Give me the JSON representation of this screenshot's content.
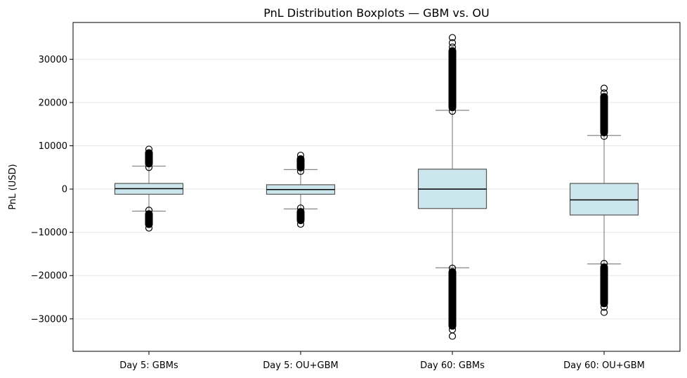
{
  "chart_data": {
    "type": "boxplot",
    "title": "PnL Distribution Boxplots — GBM vs. OU",
    "xlabel": "",
    "ylabel": "PnL (USD)",
    "ylim": [
      -37500,
      38500
    ],
    "yticks": [
      -30000,
      -20000,
      -10000,
      0,
      10000,
      20000,
      30000
    ],
    "ytick_labels": [
      "−30000",
      "−20000",
      "−10000",
      "0",
      "10000",
      "20000",
      "30000"
    ],
    "grid": "horizontal",
    "categories": [
      "Day 5: GBMs",
      "Day 5: OU+GBM",
      "Day 60: GBMs",
      "Day 60: OU+GBM"
    ],
    "boxes": [
      {
        "whisker_low": -5100,
        "q1": -1200,
        "median": 100,
        "q3": 1300,
        "whisker_high": 5300,
        "outliers_high": [
          5000,
          9200
        ],
        "outliers_low": [
          -9000,
          -4900
        ]
      },
      {
        "whisker_low": -4600,
        "q1": -1200,
        "median": -100,
        "q3": 1000,
        "whisker_high": 4500,
        "outliers_high": [
          4100,
          7800
        ],
        "outliers_low": [
          -8100,
          -4400
        ]
      },
      {
        "whisker_low": -18200,
        "q1": -4500,
        "median": 0,
        "q3": 4600,
        "whisker_high": 18200,
        "outliers_high": [
          18000,
          32800,
          33800,
          35000
        ],
        "outliers_low": [
          -34000,
          -32500,
          -31500,
          -18300
        ]
      },
      {
        "whisker_low": -17300,
        "q1": -6000,
        "median": -2500,
        "q3": 1300,
        "whisker_high": 12400,
        "outliers_high": [
          12200,
          22200,
          23300
        ],
        "outliers_low": [
          -28500,
          -27300,
          -17200
        ]
      }
    ],
    "colors": {
      "box_fill": "#cce6ee",
      "box_edge": "#555555",
      "median": "#000000",
      "whisker": "#888888",
      "grid": "#e6e6e6",
      "outlier": "#000000"
    }
  }
}
